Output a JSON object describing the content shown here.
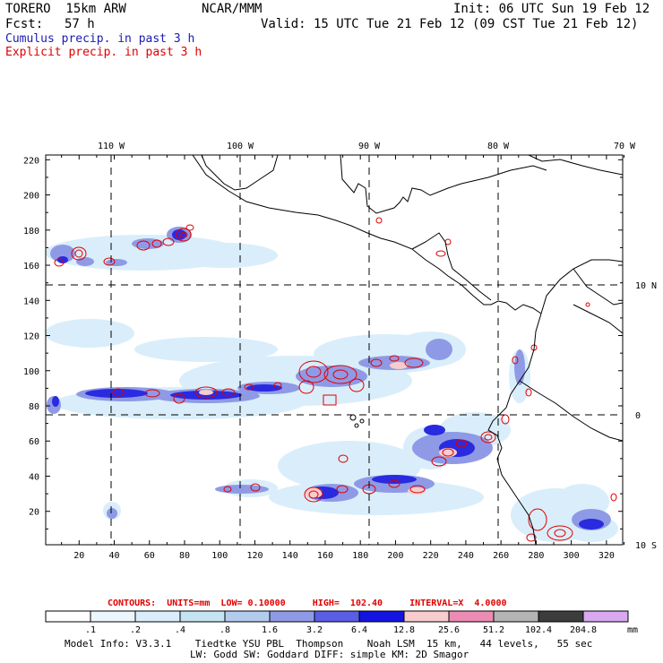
{
  "header": {
    "model": "TORERO  15km ARW",
    "center": "NCAR/MMM",
    "init": "Init: 06 UTC Sun 19 Feb 12",
    "fcst_label": "Fcst:",
    "fcst_value": "57 h",
    "valid": "Valid: 15 UTC Tue 21 Feb 12 (09 CST Tue 21 Feb 12)"
  },
  "legend": {
    "cumulus": "Cumulus precip. in past 3 h",
    "explicit": "Explicit precip. in past 3 h"
  },
  "colors": {
    "cumulus_title": "#1a1ab4",
    "explicit_title": "#e00000",
    "explicit_contour": "#e00000",
    "coastline": "#000000"
  },
  "map": {
    "lon_labels": [
      "110 W",
      "100 W",
      "90 W",
      "80 W",
      "70 W"
    ],
    "lat_labels": [
      "10 N",
      "0",
      "10 S"
    ],
    "x_ticks": [
      "20",
      "40",
      "60",
      "80",
      "100",
      "120",
      "140",
      "160",
      "180",
      "200",
      "220",
      "240",
      "260",
      "280",
      "300",
      "320"
    ],
    "y_ticks": [
      "20",
      "40",
      "60",
      "80",
      "100",
      "120",
      "140",
      "160",
      "180",
      "200",
      "220"
    ]
  },
  "contours": {
    "text": "CONTOURS:  UNITS=mm  LOW= 0.10000     HIGH=  102.40     INTERVAL=X  4.0000"
  },
  "colorbar": {
    "unit": "mm",
    "labels": [
      ".1",
      ".2",
      ".4",
      ".8",
      "1.6",
      "3.2",
      "6.4",
      "12.8",
      "25.6",
      "51.2",
      "102.4",
      "204.8"
    ],
    "colors": [
      "#ffffff",
      "#ecf6fc",
      "#d9eefa",
      "#c4e4f4",
      "#b3ccee",
      "#8f9ae6",
      "#5a5ee4",
      "#1414e0",
      "#f8cccc",
      "#ec8cb4",
      "#b4b4b4",
      "#3c3c3c",
      "#d8a8f0"
    ]
  },
  "footer": {
    "line1": "Model Info: V3.3.1    Tiedtke YSU PBL  Thompson    Noah LSM  15 km,   44 levels,   55 sec",
    "line2": "LW: Godd SW: Goddard DIFF: simple KM: 2D Smagor"
  }
}
